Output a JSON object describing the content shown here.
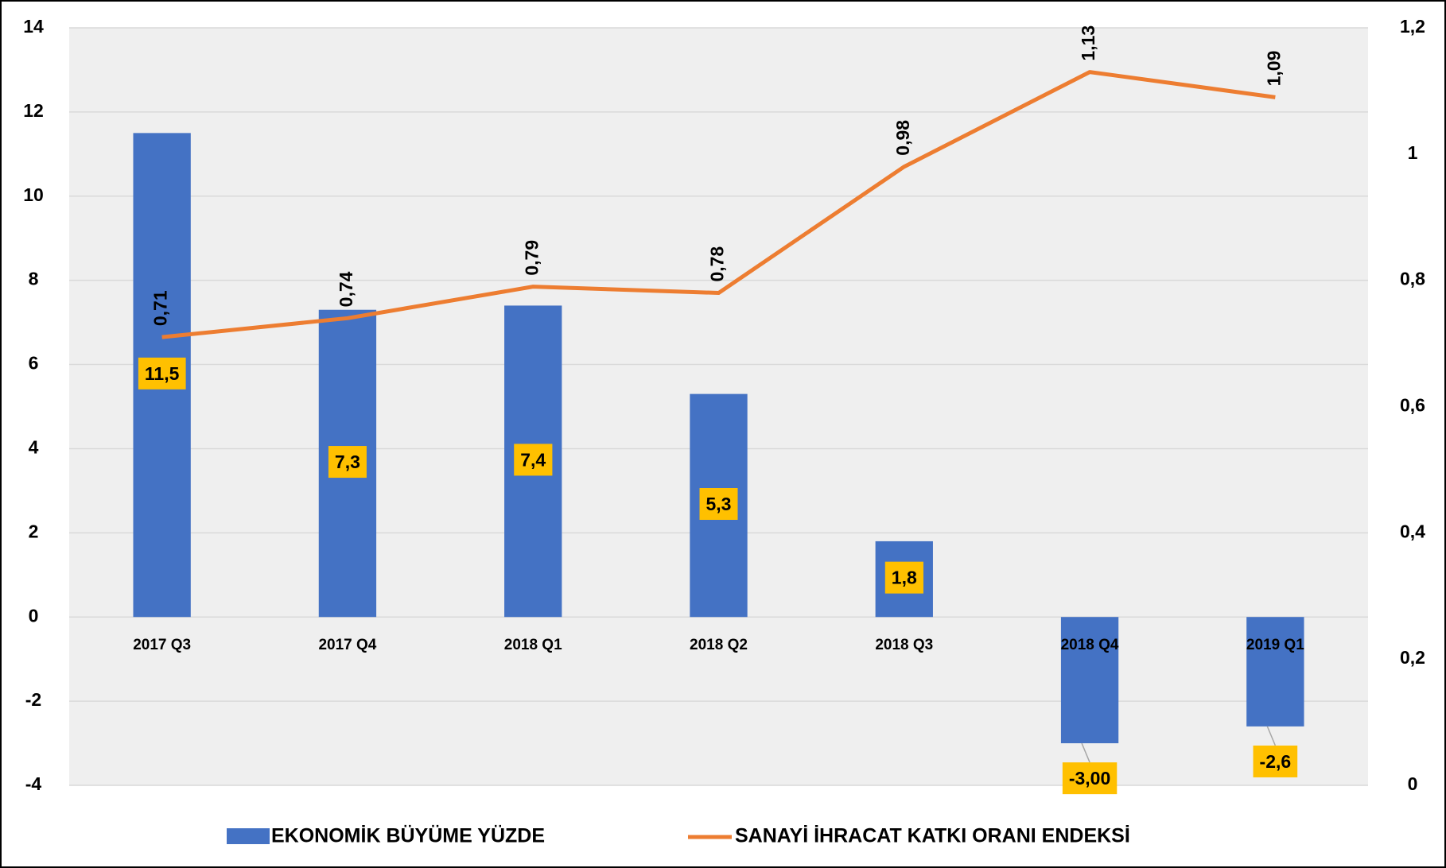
{
  "chart_data": {
    "type": "bar",
    "categories": [
      "2017 Q3",
      "2017 Q4",
      "2018 Q1",
      "2018 Q2",
      "2018 Q3",
      "2018 Q4",
      "2019 Q1"
    ],
    "series": [
      {
        "name": "EKONOMİK BÜYÜME YÜZDE",
        "type": "bar",
        "color": "#4472c4",
        "values": [
          11.5,
          7.3,
          7.4,
          5.3,
          1.8,
          -3.0,
          -2.6
        ],
        "value_labels": [
          "11,5",
          "7,3",
          "7,4",
          "5,3",
          "1,8",
          "-3,00",
          "-2,6"
        ]
      },
      {
        "name": "SANAYİ İHRACAT KATKI ORANI ENDEKSİ",
        "type": "line",
        "axis": "y2",
        "color": "#ed7d31",
        "values": [
          0.71,
          0.74,
          0.79,
          0.78,
          0.98,
          1.13,
          1.09
        ],
        "value_labels": [
          "0,71",
          "0,74",
          "0,79",
          "0,78",
          "0,98",
          "1,13",
          "1,09"
        ]
      }
    ],
    "ylim": [
      -4,
      14
    ],
    "yticks": [
      -4,
      -2,
      0,
      2,
      4,
      6,
      8,
      10,
      12,
      14
    ],
    "y2lim": [
      0,
      1.2
    ],
    "y2ticks": [
      0,
      {
        "value": 0.2,
        "label": "0,2"
      },
      {
        "value": 0.4,
        "label": "0,4"
      },
      {
        "value": 0.6,
        "label": "0,6"
      },
      {
        "value": 0.8,
        "label": "0,8"
      },
      1,
      {
        "value": 1.2,
        "label": "1,2"
      }
    ],
    "grid": true,
    "label_color": "#ffc000",
    "legend": "bottom"
  }
}
